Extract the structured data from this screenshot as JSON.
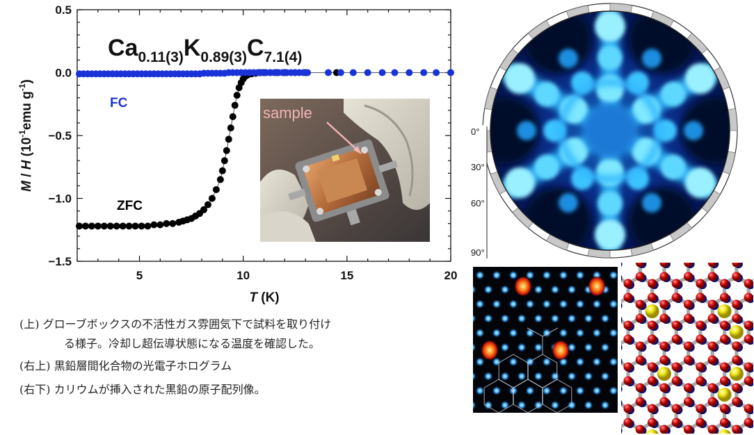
{
  "chart_data": {
    "type": "scatter",
    "title": "Ca0.11(3)K0.89(3)C7.1(4)",
    "formula_parts": {
      "e1": "Ca",
      "s1": "0.11(3)",
      "e2": "K",
      "s2": "0.89(3)",
      "e3": "C",
      "s3": "7.1(4)"
    },
    "xlabel": "T (K)",
    "xlabel_parts": {
      "italic": "T",
      "rest": " (K)"
    },
    "ylabel": "M / H (10-1 emu g-1)",
    "ylabel_parts": {
      "a": "M",
      "b": " / ",
      "c": "H",
      "d": " (10",
      "e": "-1",
      "f": "emu g",
      "g": "-1",
      "h": ")"
    },
    "xlim": [
      2,
      20
    ],
    "ylim": [
      -1.5,
      0.5
    ],
    "xticks": [
      5,
      10,
      15,
      20
    ],
    "yticks": [
      0.5,
      0.0,
      -0.5,
      -1.0,
      -1.5
    ],
    "xtick_labels": [
      "5",
      "10",
      "15",
      "20"
    ],
    "ytick_labels": [
      "0.5",
      "0.0",
      "−0.5",
      "−1.0",
      "−1.5"
    ],
    "series": [
      {
        "name": "FC",
        "color": "#1a33d9",
        "x": [
          2.1,
          2.3,
          2.5,
          2.7,
          2.9,
          3.1,
          3.3,
          3.5,
          3.7,
          3.9,
          4.1,
          4.3,
          4.5,
          4.7,
          4.9,
          5.1,
          5.3,
          5.5,
          5.7,
          5.9,
          6.1,
          6.3,
          6.5,
          6.7,
          6.9,
          7.1,
          7.3,
          7.5,
          7.7,
          7.9,
          8.1,
          8.3,
          8.5,
          8.7,
          8.9,
          9.1,
          9.3,
          9.5,
          9.7,
          9.9,
          10.1,
          10.3,
          10.5,
          10.7,
          10.9,
          11.1,
          11.3,
          11.5,
          11.7,
          11.9,
          12.1,
          12.3,
          12.5,
          12.7,
          12.9,
          13.1,
          14.1,
          14.7,
          15.3,
          16.0,
          16.7,
          17.3,
          18.0,
          18.7,
          19.3,
          20.0
        ],
        "y": [
          -0.01,
          -0.01,
          -0.01,
          -0.01,
          -0.01,
          -0.01,
          -0.01,
          -0.01,
          -0.01,
          -0.01,
          -0.01,
          -0.01,
          -0.01,
          -0.01,
          -0.01,
          -0.01,
          -0.01,
          -0.01,
          -0.01,
          -0.01,
          -0.01,
          -0.01,
          -0.01,
          -0.01,
          -0.01,
          -0.01,
          -0.01,
          -0.01,
          -0.01,
          -0.01,
          -0.005,
          -0.005,
          -0.005,
          -0.005,
          -0.005,
          -0.005,
          0,
          0,
          0,
          0,
          0,
          0,
          0,
          0,
          0,
          0,
          0,
          0,
          0,
          0,
          0,
          0,
          0,
          0,
          0,
          0,
          0,
          0,
          0,
          0,
          0,
          0,
          0,
          0,
          0,
          0
        ]
      },
      {
        "name": "ZFC",
        "color": "#000000",
        "x": [
          2.1,
          2.4,
          2.7,
          3.0,
          3.3,
          3.6,
          3.9,
          4.2,
          4.5,
          4.8,
          5.1,
          5.4,
          5.7,
          6.0,
          6.3,
          6.6,
          6.9,
          7.1,
          7.3,
          7.5,
          7.7,
          7.9,
          8.1,
          8.3,
          8.5,
          8.7,
          8.9,
          9.0,
          9.1,
          9.2,
          9.3,
          9.4,
          9.5,
          9.6,
          9.7,
          9.8,
          9.9,
          10.0,
          10.1,
          10.2,
          10.4,
          10.6,
          10.8,
          11.0,
          11.3,
          11.6,
          12.0,
          12.5,
          13.0,
          14.5
        ],
        "y": [
          -1.22,
          -1.22,
          -1.22,
          -1.22,
          -1.22,
          -1.22,
          -1.22,
          -1.22,
          -1.22,
          -1.22,
          -1.22,
          -1.22,
          -1.21,
          -1.21,
          -1.2,
          -1.2,
          -1.19,
          -1.18,
          -1.17,
          -1.16,
          -1.14,
          -1.12,
          -1.09,
          -1.05,
          -1.0,
          -0.93,
          -0.85,
          -0.78,
          -0.7,
          -0.62,
          -0.53,
          -0.44,
          -0.35,
          -0.26,
          -0.18,
          -0.12,
          -0.08,
          -0.05,
          -0.03,
          -0.02,
          -0.01,
          -0.005,
          0,
          0,
          0,
          0,
          0,
          0,
          0,
          0
        ]
      }
    ],
    "series_labels": [
      "FC",
      "ZFC"
    ],
    "grid": false
  },
  "photo": {
    "label": "sample"
  },
  "hologram": {
    "angle_labels": [
      "0°",
      "30°",
      "60°",
      "90°"
    ],
    "angle_values": [
      0,
      30,
      60,
      90
    ]
  },
  "captions": {
    "line1": "(上) グローブボックスの不活性ガス雰囲気下で試料を取り付け",
    "line1b": "る様子。冷却し超伝導状態になる温度を確認した。",
    "line2": "(右上) 黒鉛層間化合物の光電子ホログラム",
    "line3": "(右下) カリウムが挿入された黒鉛の原子配列像。"
  },
  "colors": {
    "fc_blue": "#1a33d9",
    "zfc_black": "#000000",
    "sample_label": "#f2b4b4"
  }
}
